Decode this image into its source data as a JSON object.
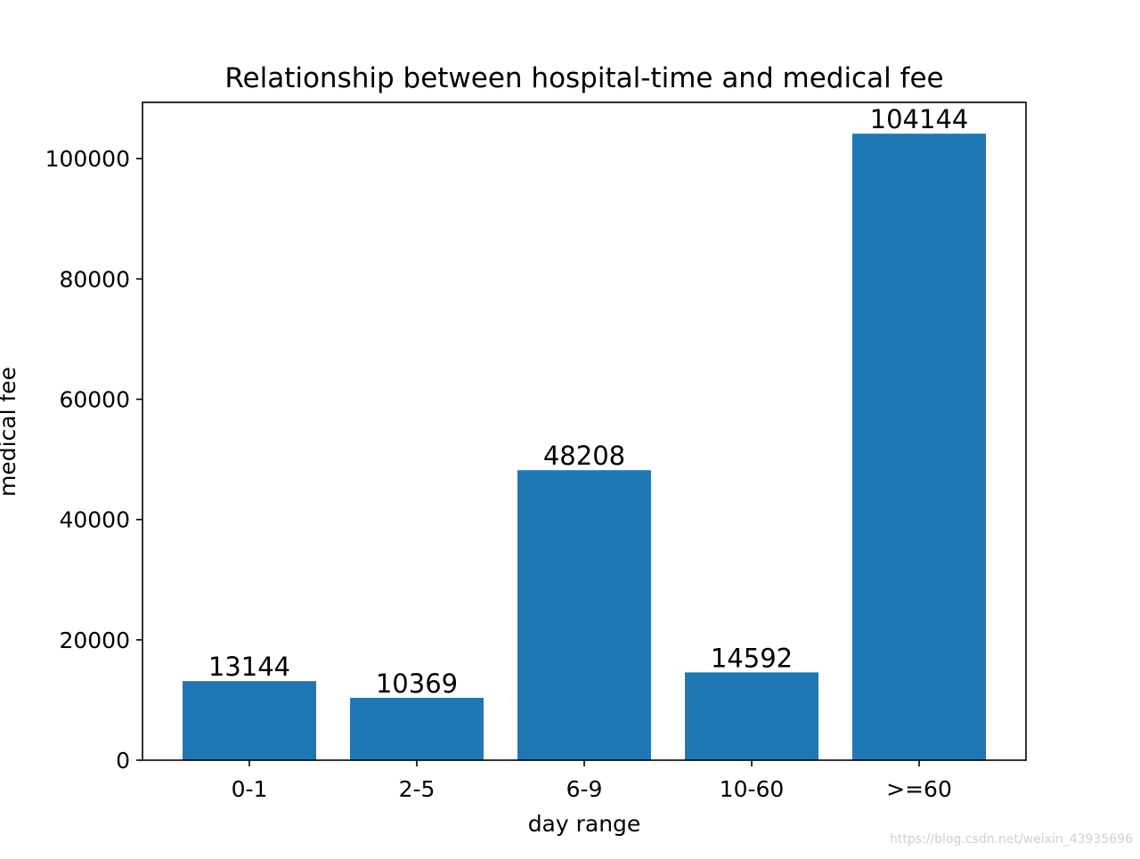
{
  "chart_data": {
    "type": "bar",
    "title": "Relationship between hospital-time and medical fee",
    "xlabel": "day range",
    "ylabel": "medical fee",
    "categories": [
      "0-1",
      "2-5",
      "6-9",
      "10-60",
      ">=60"
    ],
    "values": [
      13144,
      10369,
      48208,
      14592,
      104144
    ],
    "data_labels": [
      "13144",
      "10369",
      "48208",
      "14592",
      "104144"
    ],
    "yticks": [
      0,
      20000,
      40000,
      60000,
      80000,
      100000
    ],
    "ytick_labels": [
      "0",
      "20000",
      "40000",
      "60000",
      "80000",
      "100000"
    ],
    "ylim": [
      0,
      109351
    ],
    "grid": false,
    "bar_color": "#1f77b4"
  },
  "watermark": "https://blog.csdn.net/weixin_43935696"
}
